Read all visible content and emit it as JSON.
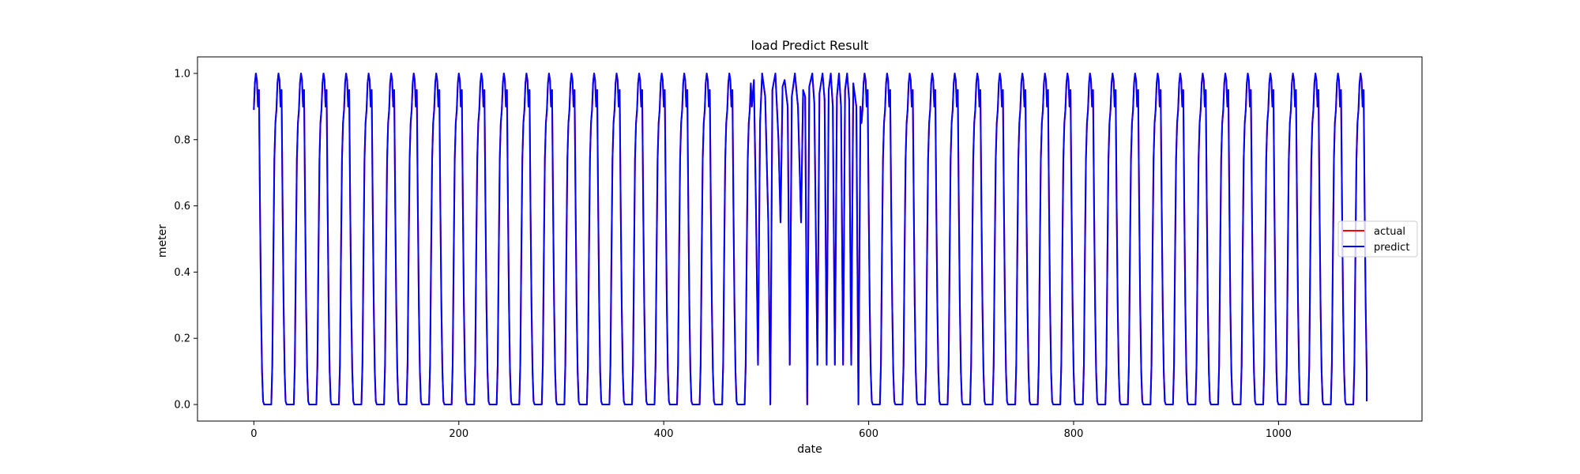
{
  "chart_data": {
    "type": "line",
    "title": "load Predict Result",
    "xlabel": "date",
    "ylabel": "meter",
    "xlim": [
      -55,
      1140
    ],
    "ylim": [
      -0.05,
      1.05
    ],
    "xticks": [
      0,
      200,
      400,
      600,
      800,
      1000
    ],
    "yticks": [
      0.0,
      0.2,
      0.4,
      0.6,
      0.8,
      1.0
    ],
    "xtick_labels": [
      "0",
      "200",
      "400",
      "600",
      "800",
      "1000"
    ],
    "ytick_labels": [
      "0.0",
      "0.2",
      "0.4",
      "0.6",
      "0.8",
      "1.0"
    ],
    "grid": false,
    "legend_position": "center-right",
    "x_range": [
      0,
      1086
    ],
    "cycle_length": 22,
    "cycle_profile": [
      [
        0,
        0.89
      ],
      [
        1,
        0.97
      ],
      [
        2,
        1.0
      ],
      [
        3,
        0.98
      ],
      [
        4,
        0.9
      ],
      [
        5,
        0.95
      ],
      [
        6,
        0.6
      ],
      [
        7,
        0.3
      ],
      [
        8,
        0.1
      ],
      [
        9,
        0.01
      ],
      [
        10,
        0.0
      ],
      [
        17,
        0.0
      ],
      [
        18,
        0.12
      ],
      [
        19,
        0.45
      ],
      [
        20,
        0.74
      ],
      [
        21,
        0.85
      ],
      [
        22,
        0.89
      ]
    ],
    "irregular_segment": {
      "x_start": 486,
      "x_end": 592,
      "points": [
        [
          486,
          0.9
        ],
        [
          488,
          0.98
        ],
        [
          490,
          0.6
        ],
        [
          492,
          0.12
        ],
        [
          494,
          0.85
        ],
        [
          496,
          1.0
        ],
        [
          499,
          0.93
        ],
        [
          502,
          0.55
        ],
        [
          504,
          0.0
        ],
        [
          506,
          0.95
        ],
        [
          509,
          1.0
        ],
        [
          512,
          0.8
        ],
        [
          514,
          0.55
        ],
        [
          516,
          0.96
        ],
        [
          518,
          0.98
        ],
        [
          521,
          0.9
        ],
        [
          523,
          0.12
        ],
        [
          525,
          0.93
        ],
        [
          528,
          1.0
        ],
        [
          531,
          0.9
        ],
        [
          534,
          0.55
        ],
        [
          536,
          0.95
        ],
        [
          538,
          0.93
        ],
        [
          540,
          0.0
        ],
        [
          542,
          0.96
        ],
        [
          545,
          1.0
        ],
        [
          547,
          0.91
        ],
        [
          550,
          0.12
        ],
        [
          552,
          0.94
        ],
        [
          555,
          1.0
        ],
        [
          557,
          0.92
        ],
        [
          559,
          0.12
        ],
        [
          561,
          0.95
        ],
        [
          563,
          1.0
        ],
        [
          565,
          0.9
        ],
        [
          567,
          0.12
        ],
        [
          569,
          0.93
        ],
        [
          571,
          1.0
        ],
        [
          573,
          0.9
        ],
        [
          575,
          0.12
        ],
        [
          577,
          0.95
        ],
        [
          579,
          1.0
        ],
        [
          581,
          0.92
        ],
        [
          583,
          0.12
        ],
        [
          585,
          0.97
        ],
        [
          588,
          0.9
        ],
        [
          590,
          0.0
        ],
        [
          592,
          0.9
        ]
      ]
    },
    "series": [
      {
        "name": "actual",
        "color": "#ff0000"
      },
      {
        "name": "predict",
        "color": "#0000ff"
      }
    ]
  }
}
